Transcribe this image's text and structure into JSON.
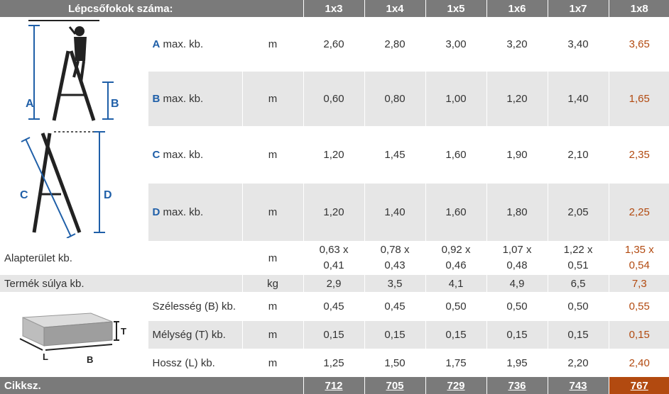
{
  "header": {
    "title": "Lépcsőfokok száma:",
    "columns": [
      "1x3",
      "1x4",
      "1x5",
      "1x6",
      "1x7",
      "1x8"
    ]
  },
  "diagram_labels": {
    "a": "A",
    "b": "B",
    "c": "C",
    "d": "D",
    "t": "T",
    "l": "L",
    "bb": "B"
  },
  "rows": {
    "a": {
      "letter": "A",
      "label": " max. kb.",
      "unit": "m",
      "values": [
        "2,60",
        "2,80",
        "3,00",
        "3,20",
        "3,40",
        "3,65"
      ]
    },
    "b": {
      "letter": "B",
      "label": " max. kb.",
      "unit": "m",
      "values": [
        "0,60",
        "0,80",
        "1,00",
        "1,20",
        "1,40",
        "1,65"
      ]
    },
    "c": {
      "letter": "C",
      "label": " max. kb.",
      "unit": "m",
      "values": [
        "1,20",
        "1,45",
        "1,60",
        "1,90",
        "2,10",
        "2,35"
      ]
    },
    "d": {
      "letter": "D",
      "label": " max. kb.",
      "unit": "m",
      "values": [
        "1,20",
        "1,40",
        "1,60",
        "1,80",
        "2,05",
        "2,25"
      ]
    },
    "area": {
      "label": "Alapterület kb.",
      "unit": "m",
      "values_top": [
        "0,63 x",
        "0,78 x",
        "0,92 x",
        "1,07 x",
        "1,22 x",
        "1,35 x"
      ],
      "values_bottom": [
        "0,41",
        "0,43",
        "0,46",
        "0,48",
        "0,51",
        "0,54"
      ]
    },
    "weight": {
      "label": "Termék súlya kb.",
      "unit": "kg",
      "values": [
        "2,9",
        "3,5",
        "4,1",
        "4,9",
        "6,5",
        "7,3"
      ]
    },
    "width": {
      "label": "Szélesség (B) kb.",
      "unit": "m",
      "values": [
        "0,45",
        "0,45",
        "0,50",
        "0,50",
        "0,50",
        "0,55"
      ]
    },
    "depth": {
      "label": "Mélység (T) kb.",
      "unit": "m",
      "values": [
        "0,15",
        "0,15",
        "0,15",
        "0,15",
        "0,15",
        "0,15"
      ]
    },
    "length": {
      "label": "Hossz (L) kb.",
      "unit": "m",
      "values": [
        "1,25",
        "1,50",
        "1,75",
        "1,95",
        "2,20",
        "2,40"
      ]
    }
  },
  "footer": {
    "label": "Cikksz.",
    "codes": [
      "712",
      "705",
      "729",
      "736",
      "743",
      "767"
    ]
  },
  "colors": {
    "header_grey": "#7a7a7a",
    "row_grey": "#e6e6e6",
    "highlight": "#b24a10",
    "letter_blue": "#1f5fa8"
  }
}
